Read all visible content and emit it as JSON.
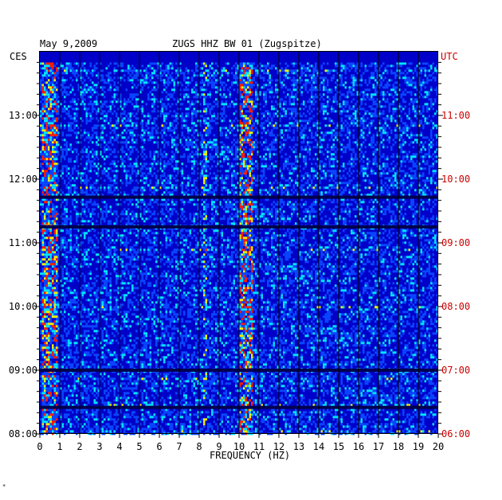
{
  "chart_data": {
    "type": "heatmap",
    "title_date": "May 9,2009",
    "title_station": "ZUGS HHZ BW 01 (Zugspitze)",
    "left_tz": "CES",
    "right_tz": "UTC",
    "xlabel": "FREQUENCY (HZ)",
    "xlim": [
      0,
      20
    ],
    "x_ticks": [
      "0",
      "1",
      "2",
      "3",
      "4",
      "5",
      "6",
      "7",
      "8",
      "9",
      "10",
      "11",
      "12",
      "13",
      "14",
      "15",
      "16",
      "17",
      "18",
      "19",
      "20"
    ],
    "left_ticks": [
      "13:00",
      "12:00",
      "11:00",
      "10:00",
      "09:00",
      "08:00"
    ],
    "right_ticks": [
      "11:00",
      "10:00",
      "09:00",
      "08:00",
      "07:00",
      "06:00"
    ],
    "time_range_ces": [
      "08:00",
      "13:50"
    ],
    "bright_bands_hz": [
      {
        "from": 0.1,
        "to": 0.8,
        "level": "high"
      },
      {
        "from": 10.0,
        "to": 10.7,
        "level": "high"
      },
      {
        "from": 8.2,
        "to": 8.3,
        "level": "line"
      }
    ],
    "dark_rows_ces": [
      "11:43",
      "11:15",
      "09:00",
      "08:25"
    ],
    "colors": {
      "background": "#0000c8",
      "mid": "#0a46ff",
      "cyan": "#00e6ff",
      "yellow": "#f0f000",
      "red": "#ff1e00",
      "grid": "#000000",
      "utc_text": "#cc0000"
    }
  },
  "footer_mark": "*"
}
